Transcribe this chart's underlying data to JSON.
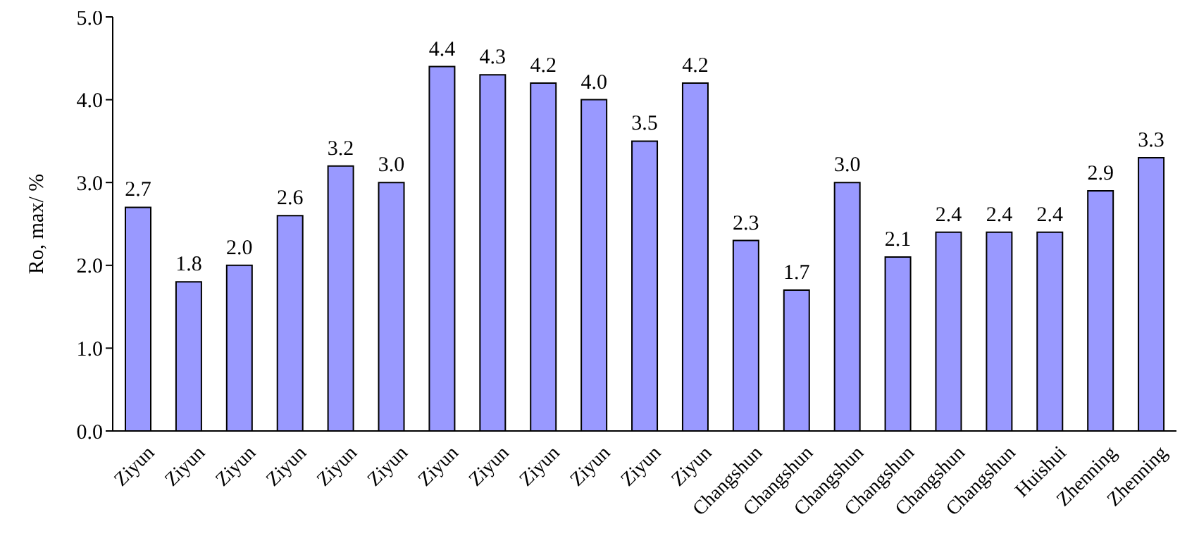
{
  "chart_data": {
    "type": "bar",
    "ylabel": "Ro, max/ %",
    "categories": [
      "Ziyun",
      "Ziyun",
      "Ziyun",
      "Ziyun",
      "Ziyun",
      "Ziyun",
      "Ziyun",
      "Ziyun",
      "Ziyun",
      "Ziyun",
      "Ziyun",
      "Ziyun",
      "Changshun",
      "Changshun",
      "Changshun",
      "Changshun",
      "Changshun",
      "Changshun",
      "Huishui",
      "Zhenning",
      "Zhenning"
    ],
    "values": [
      2.7,
      1.8,
      2.0,
      2.6,
      3.2,
      3.0,
      4.4,
      4.3,
      4.2,
      4.0,
      3.5,
      4.2,
      2.3,
      1.7,
      3.0,
      2.1,
      2.4,
      2.4,
      2.4,
      2.9,
      3.3
    ],
    "value_labels": [
      "2.7",
      "1.8",
      "2.0",
      "2.6",
      "3.2",
      "3.0",
      "4.4",
      "4.3",
      "4.2",
      "4.0",
      "3.5",
      "4.2",
      "2.3",
      "1.7",
      "3.0",
      "2.1",
      "2.4",
      "2.4",
      "2.4",
      "2.9",
      "3.3"
    ],
    "color": "#9999ff",
    "ylim": [
      0,
      5
    ],
    "yticks": [
      {
        "value": 0,
        "label": "0.0"
      },
      {
        "value": 1,
        "label": "1.0"
      },
      {
        "value": 2,
        "label": "2.0"
      },
      {
        "value": 3,
        "label": "3.0"
      },
      {
        "value": 4,
        "label": "4.0"
      },
      {
        "value": 5,
        "label": "5.0"
      }
    ],
    "grid": false
  }
}
